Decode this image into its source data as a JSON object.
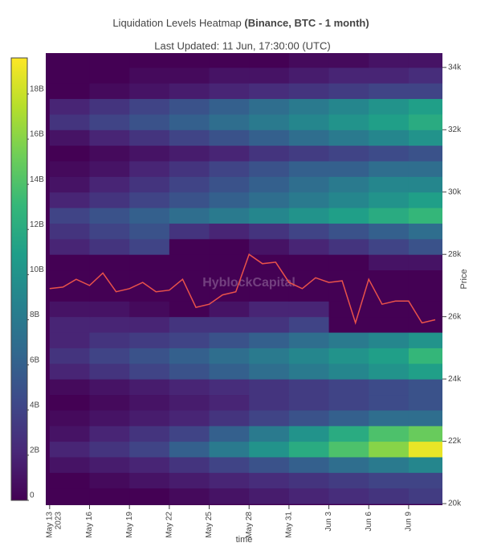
{
  "chart_data": {
    "type": "heatmap",
    "title": "Liquidation Levels Heatmap",
    "title_detail": "(Binance, BTC - 1 month)",
    "subtitle": "Last Updated: 11 Jun, 17:30:00 (UTC)",
    "watermark": "HyblockCapital",
    "x_label": "time",
    "y_label": "Price",
    "xlim": [
      "2023-05-12T17:00",
      "2023-06-11T13:00"
    ],
    "xticks": [
      {
        "value": "2023-05-13",
        "label": "May 13"
      },
      {
        "value": "2023-05-16",
        "label": "May 16"
      },
      {
        "value": "2023-05-19",
        "label": "May 19"
      },
      {
        "value": "2023-05-22",
        "label": "May 22"
      },
      {
        "value": "2023-05-25",
        "label": "May 25"
      },
      {
        "value": "2023-05-28",
        "label": "May 28"
      },
      {
        "value": "2023-05-31",
        "label": "May 31"
      },
      {
        "value": "2023-06-03",
        "label": "Jun 3"
      },
      {
        "value": "2023-06-06",
        "label": "Jun 6"
      },
      {
        "value": "2023-06-09",
        "label": "Jun 9"
      }
    ],
    "x_year_label": "2023",
    "ylim": [
      19950,
      34460
    ],
    "yticks": [
      {
        "value": 20000,
        "label": "20k"
      },
      {
        "value": 22000,
        "label": "22k"
      },
      {
        "value": 24000,
        "label": "24k"
      },
      {
        "value": 26000,
        "label": "26k"
      },
      {
        "value": 28000,
        "label": "28k"
      },
      {
        "value": 30000,
        "label": "30k"
      },
      {
        "value": 32000,
        "label": "32k"
      },
      {
        "value": 34000,
        "label": "34k"
      }
    ],
    "zlim": [
      0,
      19.6
    ],
    "zticks": [
      0,
      {
        "value": 2,
        "label": "2B"
      },
      {
        "value": 4,
        "label": "4B"
      },
      {
        "value": 6,
        "label": "6B"
      },
      {
        "value": 8,
        "label": "8B"
      },
      {
        "value": 10,
        "label": "10B"
      },
      {
        "value": 12,
        "label": "12B"
      },
      {
        "value": 14,
        "label": "14B"
      },
      {
        "value": 16,
        "label": "16B"
      },
      {
        "value": 18,
        "label": "18B"
      }
    ],
    "colorscale": [
      "#440154",
      "#482878",
      "#3e4989",
      "#31688e",
      "#26828e",
      "#1f9e89",
      "#35b779",
      "#6ece58",
      "#b5de2b",
      "#fde725"
    ],
    "time_bins": [
      "2023-05-13",
      "2023-05-16",
      "2023-05-19",
      "2023-05-22",
      "2023-05-25",
      "2023-05-28",
      "2023-05-31",
      "2023-06-03",
      "2023-06-06",
      "2023-06-09",
      "2023-06-12"
    ],
    "price_bins": [
      20000,
      20500,
      21000,
      21500,
      22000,
      22500,
      23000,
      23500,
      24000,
      24500,
      25000,
      25500,
      26000,
      26500,
      27000,
      27500,
      28000,
      28500,
      29000,
      29500,
      30000,
      30500,
      31000,
      31500,
      32000,
      32500,
      33000,
      33500,
      34000,
      34500
    ],
    "z": [
      [
        0,
        0,
        0,
        0.5,
        1,
        1.5,
        2,
        2.5,
        3,
        3.5
      ],
      [
        0,
        0.5,
        1,
        1.5,
        2,
        2.5,
        3,
        3.5,
        4,
        4
      ],
      [
        1,
        1.5,
        2,
        3,
        4,
        5,
        6,
        7,
        8,
        9
      ],
      [
        2,
        3,
        4,
        6,
        8,
        10,
        12,
        14,
        16,
        19
      ],
      [
        1,
        2,
        3,
        4,
        6,
        8,
        10,
        12,
        14,
        15
      ],
      [
        0.5,
        1,
        1.5,
        2,
        3,
        4,
        5,
        6,
        7,
        7
      ],
      [
        0,
        0.5,
        1,
        1.5,
        2,
        3,
        3.5,
        4,
        4.5,
        5
      ],
      [
        0.5,
        1,
        1.5,
        2,
        2.5,
        3,
        3.5,
        4,
        4.5,
        5
      ],
      [
        2,
        3,
        4,
        5,
        6,
        7,
        8,
        9,
        10,
        11
      ],
      [
        3,
        4,
        5,
        6,
        7,
        8,
        9,
        10,
        11,
        13
      ],
      [
        2,
        3,
        3.5,
        4,
        5,
        6,
        7,
        8,
        9,
        10
      ],
      [
        2,
        2,
        2,
        3,
        3,
        3,
        4,
        0,
        0,
        0
      ],
      [
        1,
        1,
        0.5,
        0,
        1,
        2,
        2,
        0,
        0,
        0
      ],
      [
        0,
        0,
        0,
        0,
        0,
        0,
        0,
        0,
        0,
        0
      ],
      [
        0,
        0,
        0,
        0,
        0,
        0,
        0,
        0,
        0,
        0
      ],
      [
        0,
        0,
        0,
        0,
        0,
        0,
        0,
        0,
        1,
        1
      ],
      [
        2,
        3,
        4,
        0,
        0,
        1,
        2,
        3,
        4,
        5
      ],
      [
        3,
        4,
        5,
        3,
        2,
        3,
        4,
        5,
        6,
        7
      ],
      [
        4,
        5,
        6,
        7,
        8,
        9,
        10,
        11,
        12,
        13
      ],
      [
        2,
        3,
        4,
        5,
        6,
        7,
        8,
        9,
        10,
        11
      ],
      [
        1,
        2,
        3,
        4,
        5,
        6,
        7,
        8,
        9,
        9
      ],
      [
        0.5,
        1,
        2,
        3,
        4,
        5,
        6,
        6,
        7,
        7
      ],
      [
        0,
        0.5,
        1,
        1.5,
        2,
        3,
        3.5,
        4,
        4.5,
        5
      ],
      [
        1,
        2,
        3,
        4,
        5,
        6,
        7,
        8,
        9,
        10
      ],
      [
        3,
        4,
        5,
        6,
        7,
        8,
        9,
        10,
        11,
        12
      ],
      [
        2,
        3,
        4,
        5,
        6,
        7,
        8,
        9,
        10,
        11
      ],
      [
        0,
        0.5,
        1,
        1.5,
        2,
        2.5,
        3,
        3.5,
        4,
        4
      ],
      [
        0,
        0,
        0.5,
        0.5,
        1,
        1,
        1.5,
        2,
        2,
        2.5
      ],
      [
        0,
        0,
        0,
        0,
        0,
        0,
        0.5,
        0.5,
        1,
        1
      ]
    ],
    "price": {
      "color": "#e9524a",
      "x": [
        "2023-05-13",
        "2023-05-14",
        "2023-05-15",
        "2023-05-16",
        "2023-05-17",
        "2023-05-18",
        "2023-05-19",
        "2023-05-20",
        "2023-05-21",
        "2023-05-22",
        "2023-05-23",
        "2023-05-24",
        "2023-05-25",
        "2023-05-26",
        "2023-05-27",
        "2023-05-28",
        "2023-05-29",
        "2023-05-30",
        "2023-05-31",
        "2023-06-01",
        "2023-06-02",
        "2023-06-03",
        "2023-06-04",
        "2023-06-05",
        "2023-06-06",
        "2023-06-07",
        "2023-06-08",
        "2023-06-09",
        "2023-06-10",
        "2023-06-11"
      ],
      "values": [
        26900,
        26950,
        27200,
        27000,
        27400,
        26800,
        26900,
        27100,
        26800,
        26850,
        27200,
        26300,
        26400,
        26700,
        26800,
        28000,
        27700,
        27750,
        27100,
        26900,
        27250,
        27100,
        27150,
        25800,
        27200,
        26400,
        26500,
        26500,
        25800,
        25900
      ]
    }
  }
}
